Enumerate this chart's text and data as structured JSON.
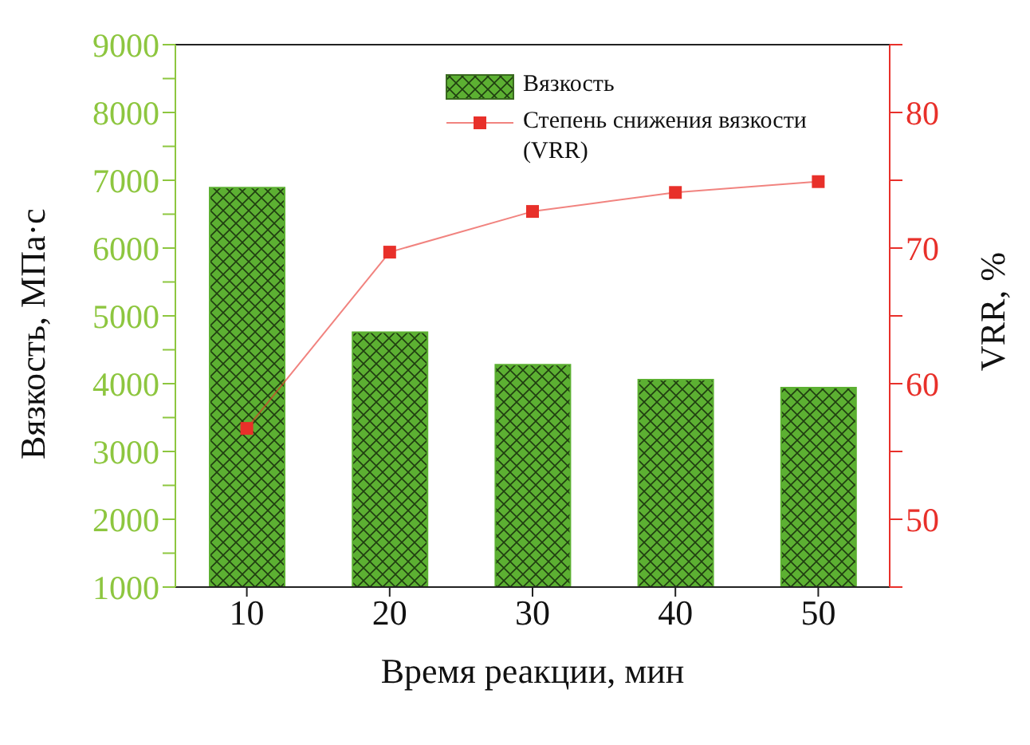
{
  "chart_data": {
    "type": "bar",
    "xlabel": "Время реакции, мин",
    "ylabel": "Вязкость, МПа·с",
    "y2label": "VRR, %",
    "categories": [
      "10",
      "20",
      "30",
      "40",
      "50"
    ],
    "series": [
      {
        "name": "Вязкость",
        "color": "#5cb032",
        "values": [
          6890,
          4760,
          4280,
          4060,
          3940
        ]
      },
      {
        "name": "Степень снижения вязкости (VRR)",
        "type": "line",
        "axis": "y2",
        "color": "#e8302a",
        "marker": "square",
        "values": [
          56.7,
          69.7,
          72.7,
          74.1,
          74.9
        ]
      }
    ],
    "ylim": [
      1000,
      9000
    ],
    "yticks": [
      1000,
      {
        "value": 1500,
        "label": null
      },
      2000,
      {
        "value": 2500,
        "label": null
      },
      3000,
      {
        "value": 3500,
        "label": null
      },
      4000,
      {
        "value": 4500,
        "label": null
      },
      5000,
      {
        "value": 5500,
        "label": null
      },
      6000,
      {
        "value": 6500,
        "label": null
      },
      7000,
      {
        "value": 7500,
        "label": null
      },
      8000,
      {
        "value": 8500,
        "label": null
      },
      9000
    ],
    "y2lim": [
      45,
      85
    ],
    "y2ticks": [
      {
        "value": 45,
        "label": null
      },
      50,
      {
        "value": 55,
        "label": null
      },
      60,
      {
        "value": 65,
        "label": null
      },
      70,
      {
        "value": 75,
        "label": null
      },
      80,
      {
        "value": 85,
        "label": null
      }
    ],
    "legend": "top right",
    "grid": false
  }
}
